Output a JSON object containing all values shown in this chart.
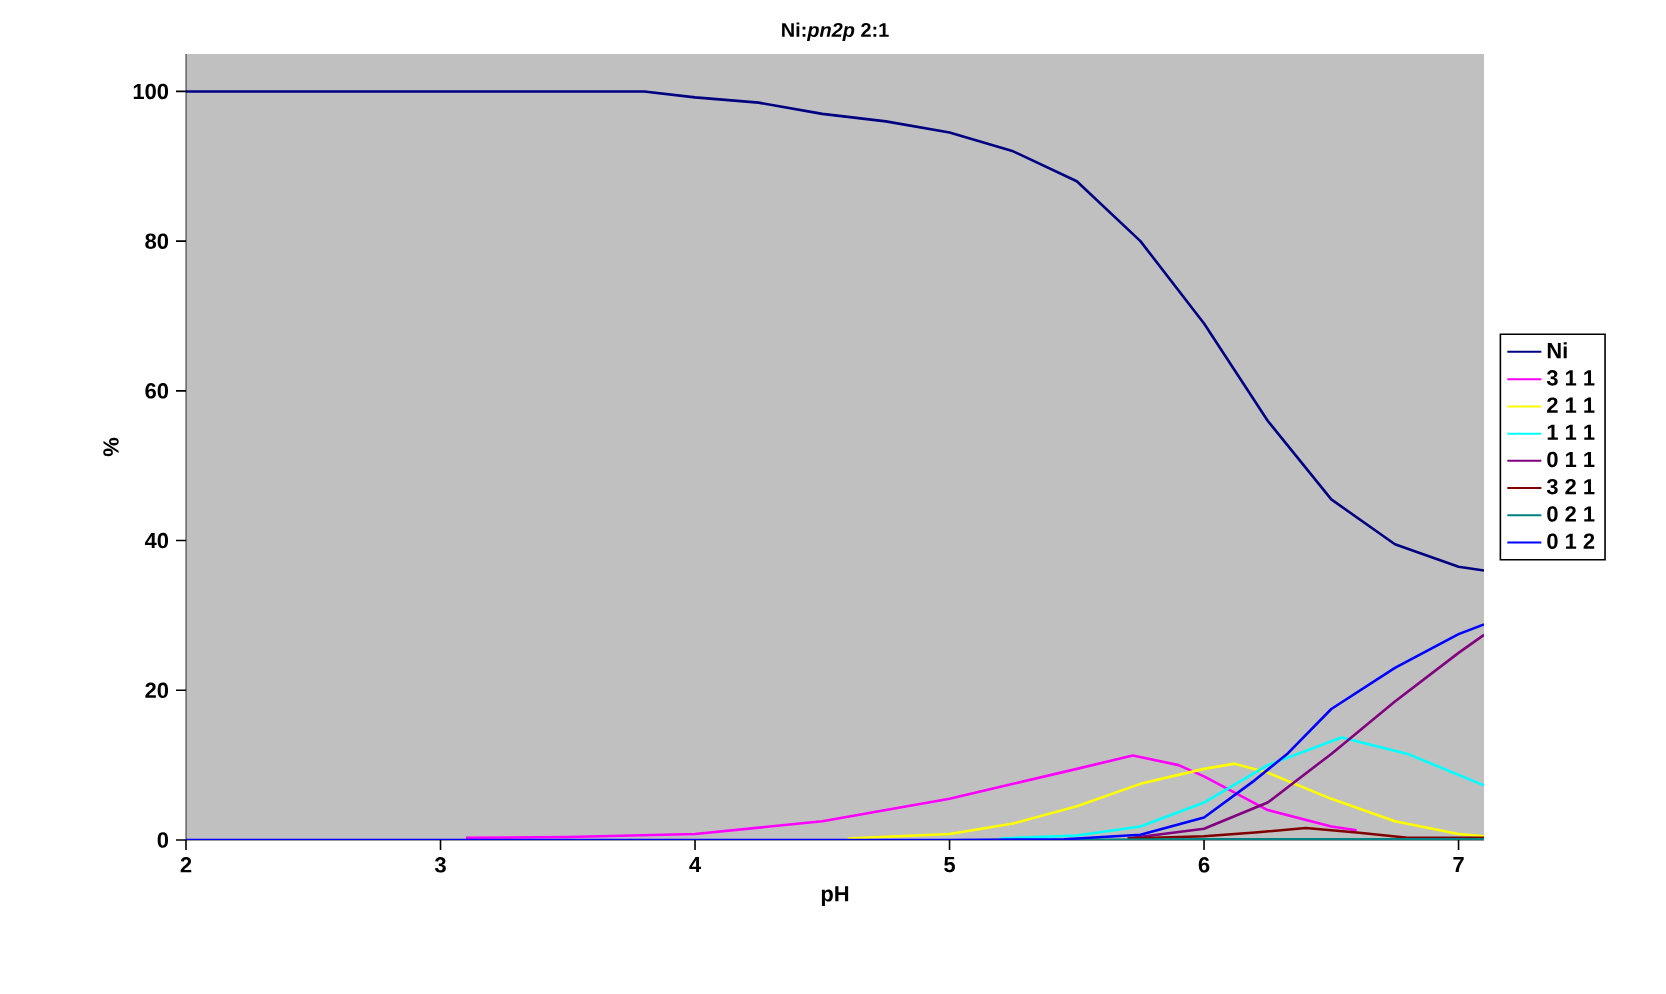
{
  "chart_data": {
    "type": "line",
    "title": "Ni:*pn2p* 2:1",
    "xlabel": "pH",
    "ylabel": "%",
    "xlim": [
      2,
      7.1
    ],
    "ylim": [
      0,
      105
    ],
    "xticks": [
      2,
      3,
      4,
      5,
      6,
      7
    ],
    "yticks": [
      0,
      20,
      40,
      60,
      80,
      100
    ],
    "legend": "right",
    "grid": false,
    "marker": "none",
    "line_style": "solid",
    "series": [
      {
        "name": "Ni",
        "color": "#000080",
        "x": [
          2,
          3,
          3.8,
          4,
          4.25,
          4.5,
          4.75,
          5,
          5.25,
          5.5,
          5.75,
          6,
          6.25,
          6.5,
          6.75,
          7,
          7.1
        ],
        "values": [
          100,
          100,
          100,
          99.2,
          98.5,
          97,
          96,
          94.5,
          92,
          88,
          80,
          69,
          56,
          45.5,
          39.5,
          36.5,
          36
        ]
      },
      {
        "name": "3 1 1",
        "color": "#ff00ff",
        "x": [
          3.1,
          3.5,
          4,
          4.5,
          5,
          5.25,
          5.5,
          5.72,
          5.9,
          6,
          6.25,
          6.5,
          6.6
        ],
        "values": [
          0.3,
          0.4,
          0.8,
          2.5,
          5.5,
          7.5,
          9.5,
          11.3,
          10,
          8.5,
          4,
          1.8,
          1.3
        ]
      },
      {
        "name": "2 1 1",
        "color": "#ffff00",
        "x": [
          4.6,
          5,
          5.25,
          5.5,
          5.75,
          6,
          6.12,
          6.25,
          6.5,
          6.75,
          7,
          7.1
        ],
        "values": [
          0.2,
          0.8,
          2.2,
          4.5,
          7.5,
          9.5,
          10.2,
          9,
          5.5,
          2.5,
          0.8,
          0.5
        ]
      },
      {
        "name": "1 1 1",
        "color": "#00ffff",
        "x": [
          5.2,
          5.5,
          5.75,
          6,
          6.25,
          6.54,
          6.8,
          7.1
        ],
        "values": [
          0.2,
          0.6,
          1.8,
          5,
          10,
          13.7,
          11.5,
          7.3
        ]
      },
      {
        "name": "0 1 1",
        "color": "#800080",
        "x": [
          5.7,
          6,
          6.25,
          6.5,
          6.75,
          7,
          7.1
        ],
        "values": [
          0.2,
          1.5,
          5,
          11.5,
          18.5,
          25,
          27.4
        ]
      },
      {
        "name": "3 2 1",
        "color": "#800000",
        "x": [
          5.7,
          6,
          6.2,
          6.4,
          6.6,
          6.8,
          7.1
        ],
        "values": [
          0.2,
          0.5,
          1,
          1.6,
          1,
          0.3,
          0.3
        ]
      },
      {
        "name": "0 2 1",
        "color": "#008080",
        "x": [
          5.4,
          6,
          6.5,
          7.1
        ],
        "values": [
          0,
          0.1,
          0.1,
          0.1
        ]
      },
      {
        "name": "0 1 2",
        "color": "#0000ff",
        "x": [
          2,
          5,
          5.45,
          5.75,
          6,
          6.2,
          6.33,
          6.5,
          6.75,
          7,
          7.1
        ],
        "values": [
          0,
          0,
          0.1,
          0.7,
          3,
          8,
          11.6,
          17.5,
          23,
          27.5,
          28.8
        ]
      }
    ]
  }
}
